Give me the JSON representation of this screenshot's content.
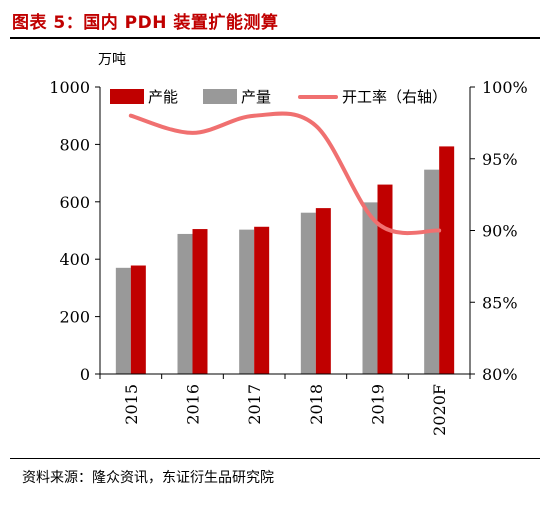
{
  "figure": {
    "title": "图表 5：国内 PDH 装置扩能测算",
    "source": "资料来源：隆众资讯，东证衍生品研究院"
  },
  "chart_data": {
    "type": "bar",
    "categories": [
      "2015",
      "2016",
      "2017",
      "2018",
      "2019",
      "2020F"
    ],
    "y_unit": "万吨",
    "ylim": [
      0,
      1000
    ],
    "y_ticks": [
      "0",
      "200",
      "400",
      "600",
      "800",
      "1000"
    ],
    "y2lim": [
      80,
      100
    ],
    "y2_ticks": [
      "80%",
      "85%",
      "90%",
      "95%",
      "100%"
    ],
    "series": [
      {
        "name": "产能",
        "type": "bar",
        "axis": "left",
        "color": "#c00000",
        "values": [
          378,
          505,
          513,
          578,
          660,
          793
        ]
      },
      {
        "name": "产量",
        "type": "bar",
        "axis": "left",
        "color": "#999999",
        "values": [
          370,
          488,
          503,
          562,
          598,
          712
        ]
      },
      {
        "name": "开工率（右轴）",
        "type": "line",
        "axis": "right",
        "color": "#f07070",
        "values": [
          98.0,
          96.8,
          98.0,
          97.3,
          90.5,
          90.0
        ]
      }
    ],
    "legend_position": "top"
  }
}
